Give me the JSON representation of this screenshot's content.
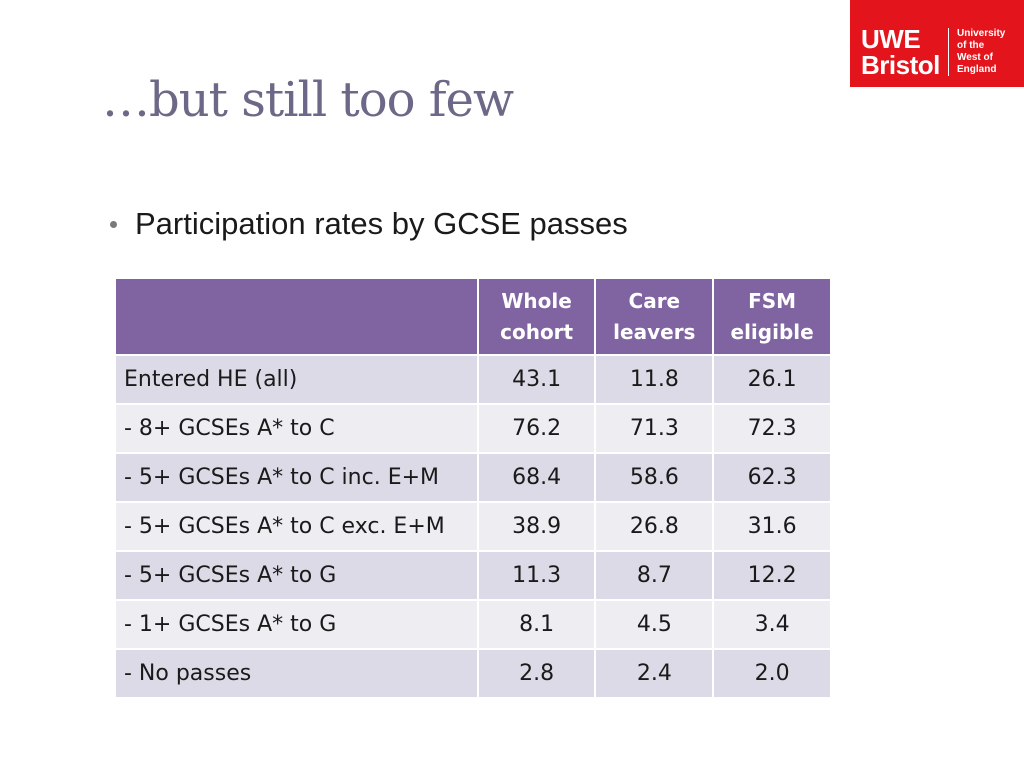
{
  "logo": {
    "line1": "UWE",
    "line2": "Bristol",
    "small": [
      "University",
      "of the",
      "West of",
      "England"
    ]
  },
  "slide": {
    "title": "…but still too few",
    "bullet": "Participation rates by GCSE passes"
  },
  "table": {
    "headers": [
      {
        "line1": "Whole",
        "line2": "cohort"
      },
      {
        "line1": "Care",
        "line2": "leavers"
      },
      {
        "line1": "FSM",
        "line2": "eligible"
      }
    ],
    "rows": [
      {
        "label": "Entered HE (all)",
        "values": [
          "43.1",
          "11.8",
          "26.1"
        ]
      },
      {
        "label": "- 8+ GCSEs A* to C",
        "values": [
          "76.2",
          "71.3",
          "72.3"
        ]
      },
      {
        "label": "- 5+ GCSEs A* to C inc. E+M",
        "values": [
          "68.4",
          "58.6",
          "62.3"
        ]
      },
      {
        "label": "- 5+ GCSEs A* to C exc. E+M",
        "values": [
          "38.9",
          "26.8",
          "31.6"
        ]
      },
      {
        "label": "- 5+ GCSEs A* to G",
        "values": [
          "11.3",
          "8.7",
          "12.2"
        ]
      },
      {
        "label": "- 1+ GCSEs A* to G",
        "values": [
          "8.1",
          "4.5",
          "3.4"
        ]
      },
      {
        "label": "- No passes",
        "values": [
          "2.8",
          "2.4",
          "2.0"
        ]
      }
    ]
  },
  "colors": {
    "logo_red": "#e3141b",
    "header_purple": "#8064a2",
    "title_gray": "#6d6887"
  }
}
